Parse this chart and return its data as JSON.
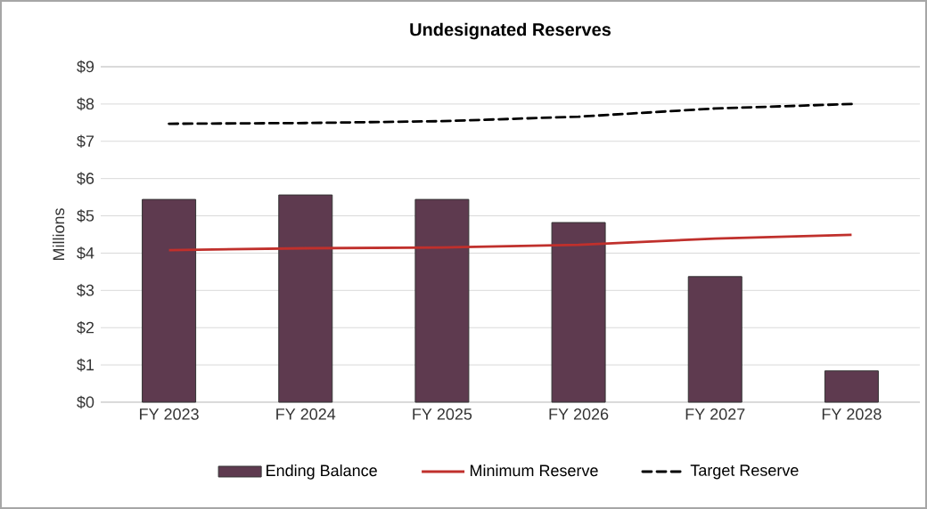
{
  "chart_data": {
    "type": "bar",
    "title": "Undesignated Reserves",
    "ylabel": "Millions",
    "categories": [
      "FY 2023",
      "FY 2024",
      "FY 2025",
      "FY 2026",
      "FY 2027",
      "FY 2028"
    ],
    "series": [
      {
        "name": "Ending Balance",
        "color": "#5e3a4f",
        "values": [
          5.44,
          5.56,
          5.44,
          4.82,
          3.37,
          0.84
        ]
      },
      {
        "name": "Minimum Reserve",
        "type": "line",
        "color": "#c0302c",
        "values": [
          4.08,
          4.13,
          4.15,
          4.22,
          4.39,
          4.49
        ]
      },
      {
        "name": "Target Reserve",
        "type": "line",
        "color": "#000000",
        "line_style": "dashed",
        "values": [
          7.47,
          7.49,
          7.54,
          7.66,
          7.88,
          8.0
        ]
      }
    ],
    "ylim": [
      0,
      9
    ],
    "yticks": [
      {
        "value": 0,
        "label": "$0"
      },
      {
        "value": 1,
        "label": "$1"
      },
      {
        "value": 2,
        "label": "$2"
      },
      {
        "value": 3,
        "label": "$3"
      },
      {
        "value": 4,
        "label": "$4"
      },
      {
        "value": 5,
        "label": "$5"
      },
      {
        "value": 6,
        "label": "$6"
      },
      {
        "value": 7,
        "label": "$7"
      },
      {
        "value": 8,
        "label": "$8"
      },
      {
        "value": 9,
        "label": "$9"
      }
    ],
    "grid": "y",
    "legend": "bottom"
  }
}
